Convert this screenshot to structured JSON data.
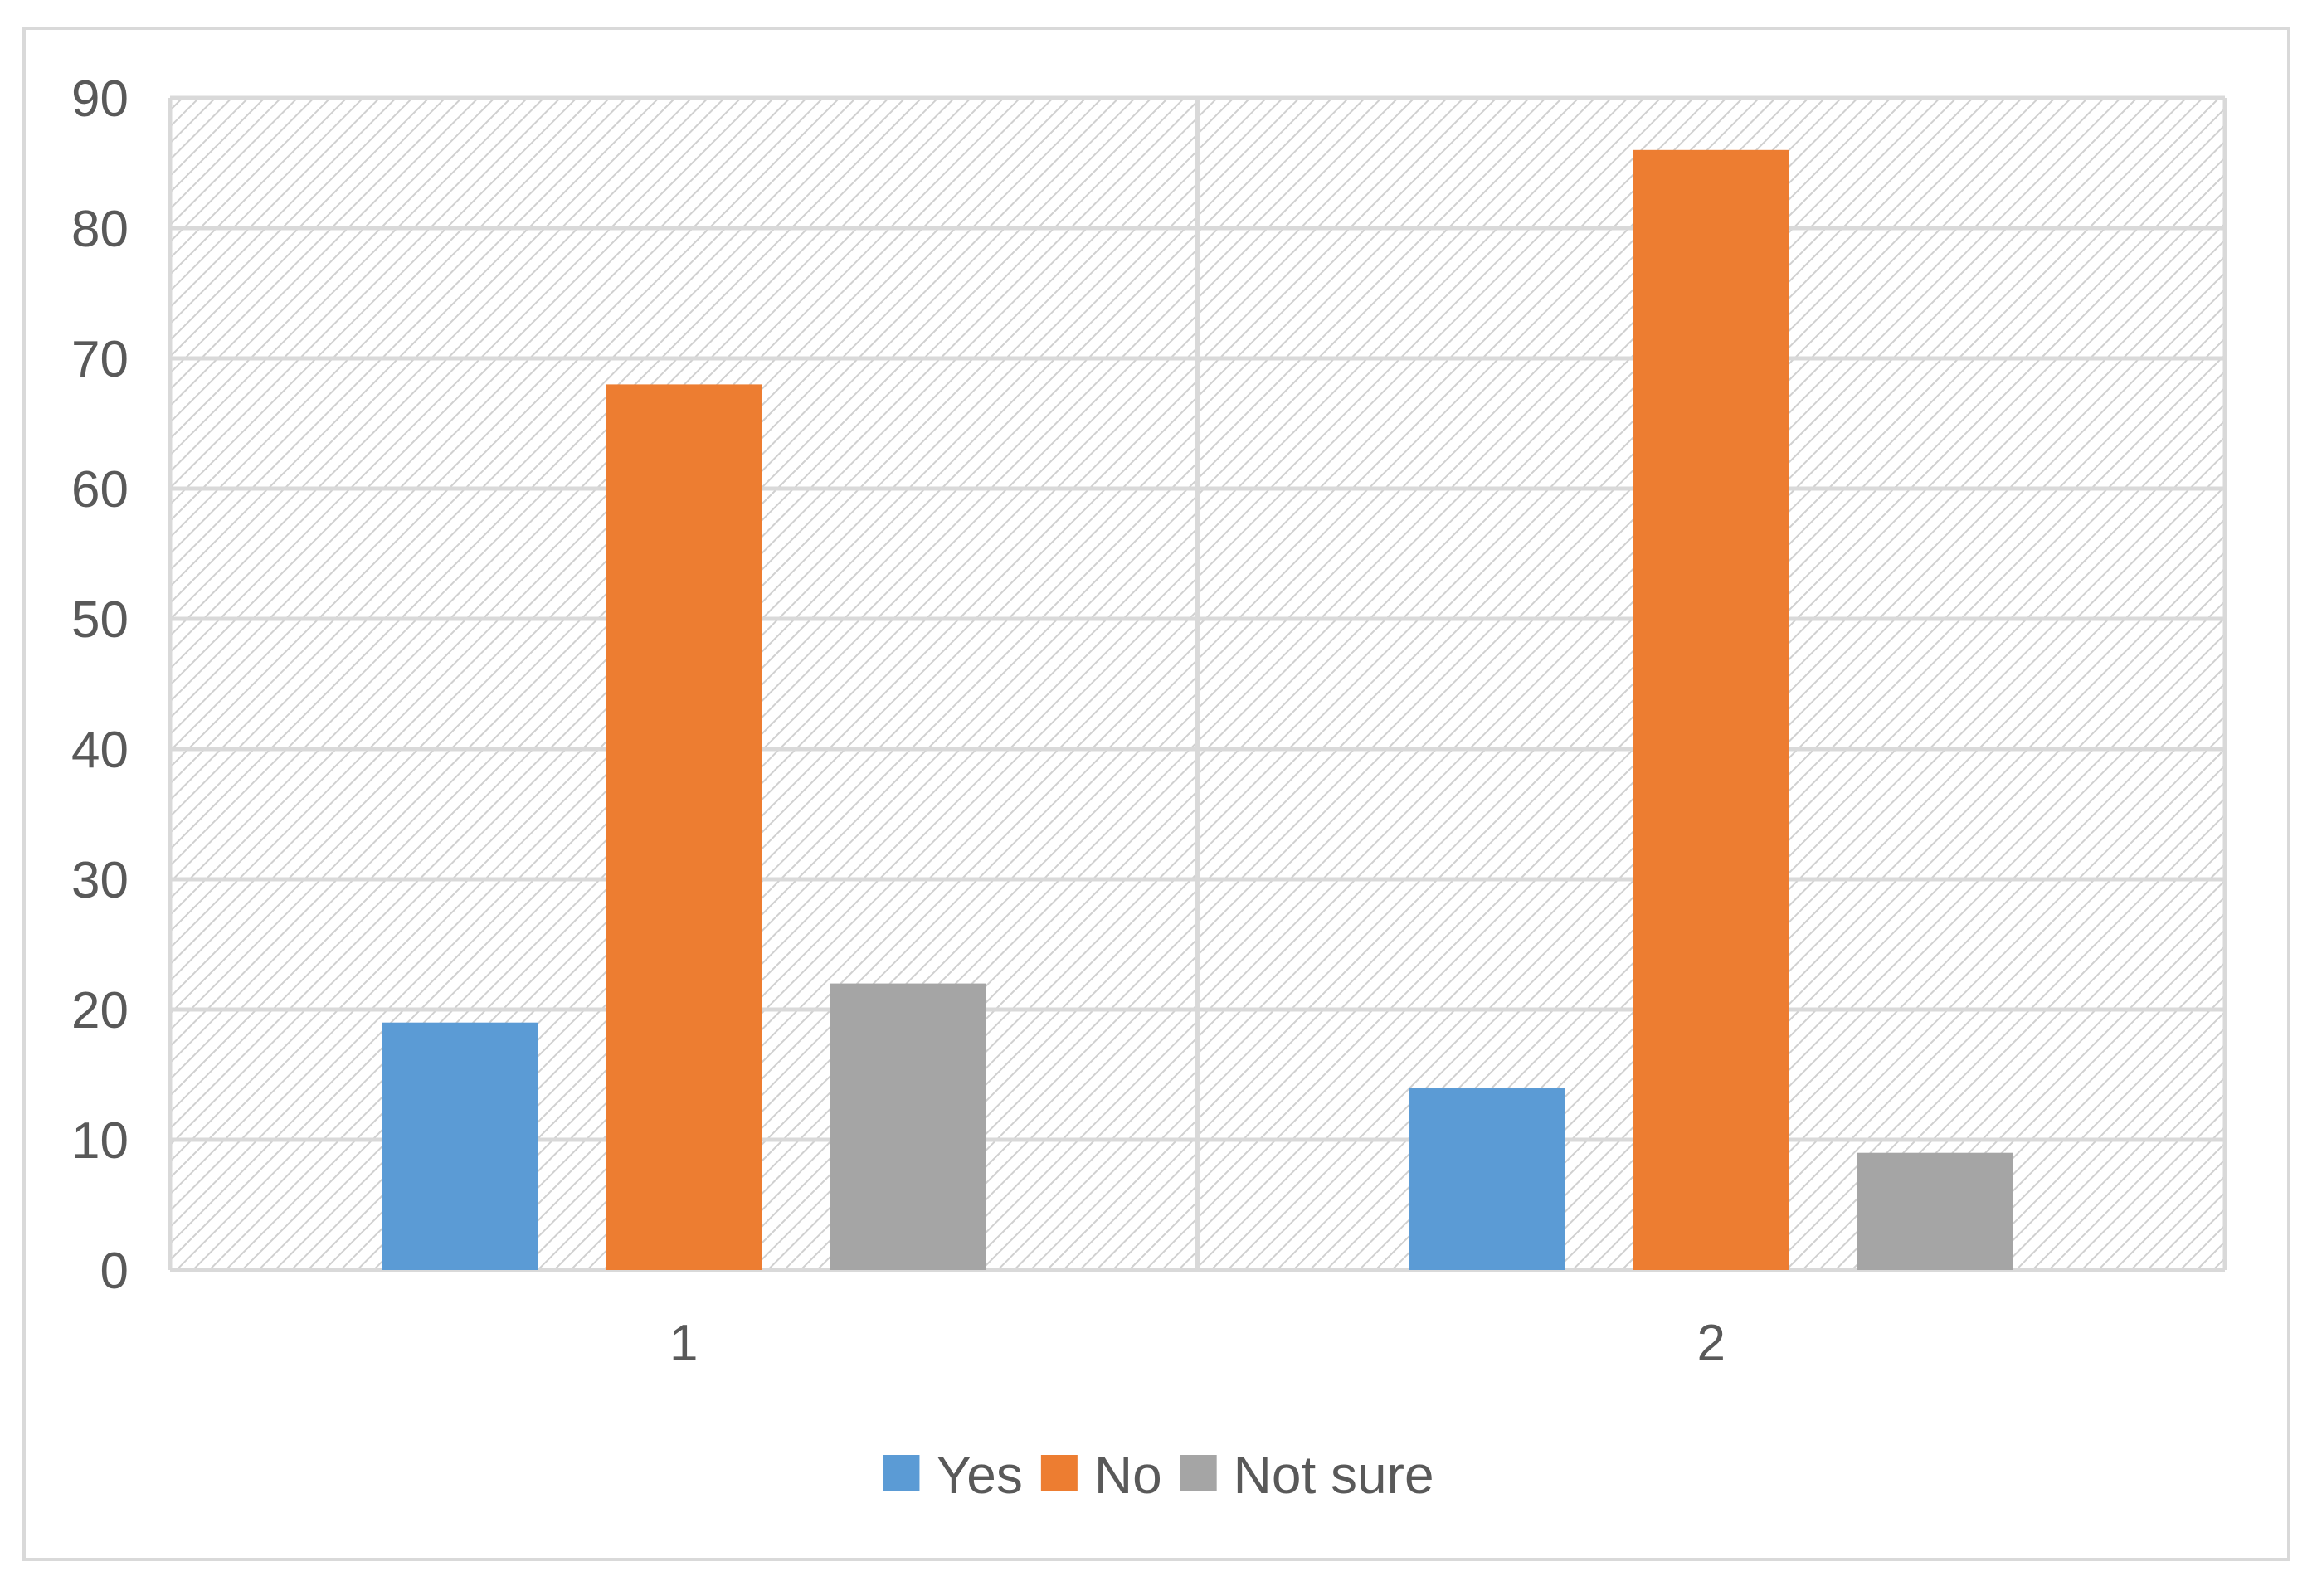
{
  "chart_data": {
    "type": "bar",
    "title": "",
    "xlabel": "",
    "ylabel": "",
    "categories": [
      "1",
      "2"
    ],
    "series": [
      {
        "name": "Yes",
        "values": [
          19,
          14
        ],
        "color": "#5b9bd5"
      },
      {
        "name": "No",
        "values": [
          68,
          86
        ],
        "color": "#ed7d31"
      },
      {
        "name": "Not sure",
        "values": [
          22,
          9
        ],
        "color": "#a5a5a5"
      }
    ],
    "ylim": [
      0,
      90
    ],
    "yticks": [
      "0",
      "10",
      "20",
      "30",
      "40",
      "50",
      "60",
      "70",
      "80",
      "90"
    ],
    "grid": true,
    "legend": "bottom",
    "plot_background": "hatched"
  }
}
